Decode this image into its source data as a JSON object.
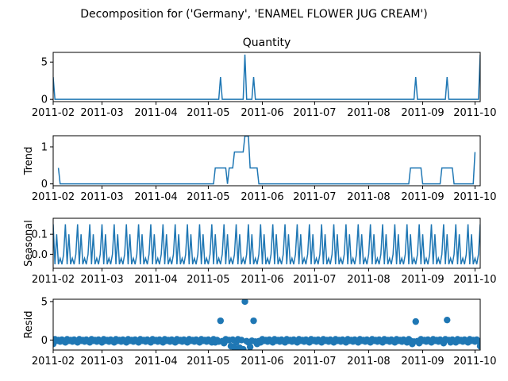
{
  "figure": {
    "suptitle": "Decomposition for ('Germany', 'ENAMEL FLOWER JUG CREAM')"
  },
  "chart_data": {
    "type": "line",
    "x_start": "2011-02-01",
    "x_end": "2011-10-04",
    "x_ticks": [
      "2011-02",
      "2011-03",
      "2011-04",
      "2011-05",
      "2011-06",
      "2011-07",
      "2011-08",
      "2011-09",
      "2011-10"
    ],
    "line_color": "#1f77b4",
    "panels": [
      {
        "id": "observed",
        "type": "line",
        "title": "Quantity",
        "ylabel": "",
        "ylim": [
          -0.3,
          6.3
        ],
        "yticks": [
          0,
          5
        ],
        "ytick_labels": [
          "0",
          "5"
        ],
        "points": [
          [
            "2011-02-01",
            3
          ],
          [
            "2011-02-02",
            0
          ],
          [
            "2011-05-07",
            0
          ],
          [
            "2011-05-08",
            3
          ],
          [
            "2011-05-09",
            0
          ],
          [
            "2011-05-21",
            0
          ],
          [
            "2011-05-22",
            6
          ],
          [
            "2011-05-23",
            0
          ],
          [
            "2011-05-26",
            0
          ],
          [
            "2011-05-27",
            3
          ],
          [
            "2011-05-28",
            0
          ],
          [
            "2011-08-27",
            0
          ],
          [
            "2011-08-28",
            3
          ],
          [
            "2011-08-29",
            0
          ],
          [
            "2011-09-14",
            0
          ],
          [
            "2011-09-15",
            3
          ],
          [
            "2011-09-16",
            0
          ],
          [
            "2011-10-03",
            0
          ],
          [
            "2011-10-04",
            6
          ]
        ]
      },
      {
        "id": "trend",
        "type": "line",
        "title": "",
        "ylabel": "Trend",
        "ylim": [
          -0.05,
          1.3
        ],
        "yticks": [
          0,
          1
        ],
        "ytick_labels": [
          "0",
          "1"
        ],
        "points": [
          [
            "2011-02-04",
            0.43
          ],
          [
            "2011-02-05",
            0
          ],
          [
            "2011-05-04",
            0
          ],
          [
            "2011-05-05",
            0.43
          ],
          [
            "2011-05-11",
            0.43
          ],
          [
            "2011-05-12",
            0
          ],
          [
            "2011-05-13",
            0.43
          ],
          [
            "2011-05-15",
            0.43
          ],
          [
            "2011-05-16",
            0.86
          ],
          [
            "2011-05-21",
            0.86
          ],
          [
            "2011-05-22",
            1.29
          ],
          [
            "2011-05-24",
            1.29
          ],
          [
            "2011-05-25",
            0.43
          ],
          [
            "2011-05-29",
            0.43
          ],
          [
            "2011-05-30",
            0
          ],
          [
            "2011-08-24",
            0
          ],
          [
            "2011-08-25",
            0.43
          ],
          [
            "2011-08-31",
            0.43
          ],
          [
            "2011-09-01",
            0
          ],
          [
            "2011-09-11",
            0
          ],
          [
            "2011-09-12",
            0.43
          ],
          [
            "2011-09-18",
            0.43
          ],
          [
            "2011-09-19",
            0
          ],
          [
            "2011-09-30",
            0
          ],
          [
            "2011-10-01",
            0.86
          ]
        ]
      },
      {
        "id": "seasonal",
        "type": "line",
        "title": "",
        "ylabel": "Seasonal",
        "ylim": [
          -0.07,
          0.18
        ],
        "yticks": [
          0.0,
          0.1
        ],
        "ytick_labels": [
          "0.0",
          "0.1"
        ],
        "period_days": 7,
        "pattern": [
          0.15,
          -0.05,
          0.1,
          -0.05,
          -0.02,
          -0.05,
          0.0
        ],
        "start": "2011-02-01",
        "end": "2011-10-04"
      },
      {
        "id": "resid",
        "type": "scatter",
        "title": "",
        "ylabel": "Resid",
        "ylim": [
          -1.3,
          5.3
        ],
        "yticks": [
          0,
          5
        ],
        "ytick_labels": [
          "0",
          "5"
        ],
        "zero_line": true,
        "start": "2011-02-01",
        "end": "2011-10-04",
        "baseline_jitter": [
          -0.3,
          0.1,
          -0.1,
          0.0,
          -0.2,
          0.05,
          -0.15
        ],
        "outliers": [
          [
            "2011-02-01",
            -0.5
          ],
          [
            "2011-05-05",
            -0.3
          ],
          [
            "2011-05-08",
            2.5
          ],
          [
            "2011-05-10",
            -0.4
          ],
          [
            "2011-05-12",
            0.0
          ],
          [
            "2011-05-14",
            -0.8
          ],
          [
            "2011-05-16",
            -1.0
          ],
          [
            "2011-05-19",
            -1.0
          ],
          [
            "2011-05-21",
            -1.2
          ],
          [
            "2011-05-22",
            5.0
          ],
          [
            "2011-05-25",
            -0.9
          ],
          [
            "2011-05-27",
            2.5
          ],
          [
            "2011-05-29",
            -0.5
          ],
          [
            "2011-08-26",
            -0.5
          ],
          [
            "2011-08-28",
            2.4
          ],
          [
            "2011-08-30",
            -0.4
          ],
          [
            "2011-09-13",
            -0.4
          ],
          [
            "2011-09-15",
            2.6
          ],
          [
            "2011-09-17",
            -0.3
          ],
          [
            "2011-10-01",
            -0.2
          ],
          [
            "2011-10-04",
            -0.8
          ]
        ]
      }
    ]
  }
}
